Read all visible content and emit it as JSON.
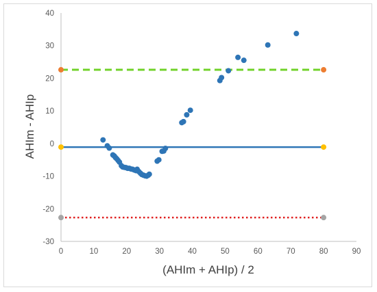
{
  "chart_data": {
    "type": "scatter",
    "title": "",
    "xlabel": "(AHIm + AHIp) / 2",
    "ylabel": "AHIm  -  AHIp",
    "xlim": [
      0,
      90
    ],
    "ylim": [
      -30,
      40
    ],
    "x_ticks": [
      "0",
      "10",
      "20",
      "30",
      "40",
      "50",
      "60",
      "70",
      "80",
      "90"
    ],
    "y_ticks": [
      "40",
      "30",
      "20",
      "10",
      "0",
      "-10",
      "-20",
      "-30"
    ],
    "grid": false,
    "legend": "none",
    "colors": {
      "points": "#2e75b6",
      "mean_line": "#2e75b6",
      "upper_line": "#70d22a",
      "lower_line": "#e02020",
      "upper_marker": "#ed7d31",
      "mean_marker": "#ffc000",
      "lower_marker": "#a5a5a5"
    },
    "reference_lines": [
      {
        "name": "upper",
        "y": 22.6,
        "x_range": [
          0,
          80
        ],
        "style": "dashed"
      },
      {
        "name": "mean",
        "y": -1.1,
        "x_range": [
          0,
          80
        ],
        "style": "solid"
      },
      {
        "name": "lower",
        "y": -22.7,
        "x_range": [
          0,
          80
        ],
        "style": "dotted"
      }
    ],
    "points": [
      [
        12.8,
        1.1
      ],
      [
        14.1,
        -0.7
      ],
      [
        14.7,
        -1.4
      ],
      [
        15.8,
        -3.5
      ],
      [
        16.2,
        -3.8
      ],
      [
        16.6,
        -4.3
      ],
      [
        17.0,
        -4.7
      ],
      [
        17.4,
        -5.2
      ],
      [
        17.8,
        -5.7
      ],
      [
        18.4,
        -6.8
      ],
      [
        18.8,
        -7.2
      ],
      [
        19.3,
        -7.3
      ],
      [
        19.8,
        -7.4
      ],
      [
        20.3,
        -7.6
      ],
      [
        20.8,
        -7.6
      ],
      [
        21.3,
        -7.8
      ],
      [
        21.8,
        -7.9
      ],
      [
        22.3,
        -8.1
      ],
      [
        22.8,
        -8.3
      ],
      [
        23.2,
        -7.9
      ],
      [
        23.7,
        -8.6
      ],
      [
        24.2,
        -9.1
      ],
      [
        24.6,
        -9.5
      ],
      [
        25.1,
        -9.7
      ],
      [
        25.6,
        -9.9
      ],
      [
        26.1,
        -10.0
      ],
      [
        26.6,
        -9.7
      ],
      [
        26.9,
        -9.4
      ],
      [
        29.3,
        -5.4
      ],
      [
        29.8,
        -5.0
      ],
      [
        30.8,
        -2.4
      ],
      [
        31.3,
        -2.3
      ],
      [
        31.8,
        -1.5
      ],
      [
        36.8,
        6.4
      ],
      [
        37.3,
        6.7
      ],
      [
        38.3,
        8.8
      ],
      [
        39.4,
        10.2
      ],
      [
        48.4,
        19.3
      ],
      [
        48.9,
        20.2
      ],
      [
        51.0,
        22.3
      ],
      [
        53.9,
        26.4
      ],
      [
        55.7,
        25.5
      ],
      [
        63.0,
        30.2
      ],
      [
        71.7,
        33.7
      ]
    ],
    "end_markers": [
      {
        "x": 0,
        "y": 22.6,
        "color_key": "upper_marker"
      },
      {
        "x": 80,
        "y": 22.6,
        "color_key": "upper_marker"
      },
      {
        "x": 0,
        "y": -1.1,
        "color_key": "mean_marker"
      },
      {
        "x": 80,
        "y": -1.1,
        "color_key": "mean_marker"
      },
      {
        "x": 0,
        "y": -22.7,
        "color_key": "lower_marker"
      },
      {
        "x": 80,
        "y": -22.7,
        "color_key": "lower_marker"
      }
    ]
  }
}
